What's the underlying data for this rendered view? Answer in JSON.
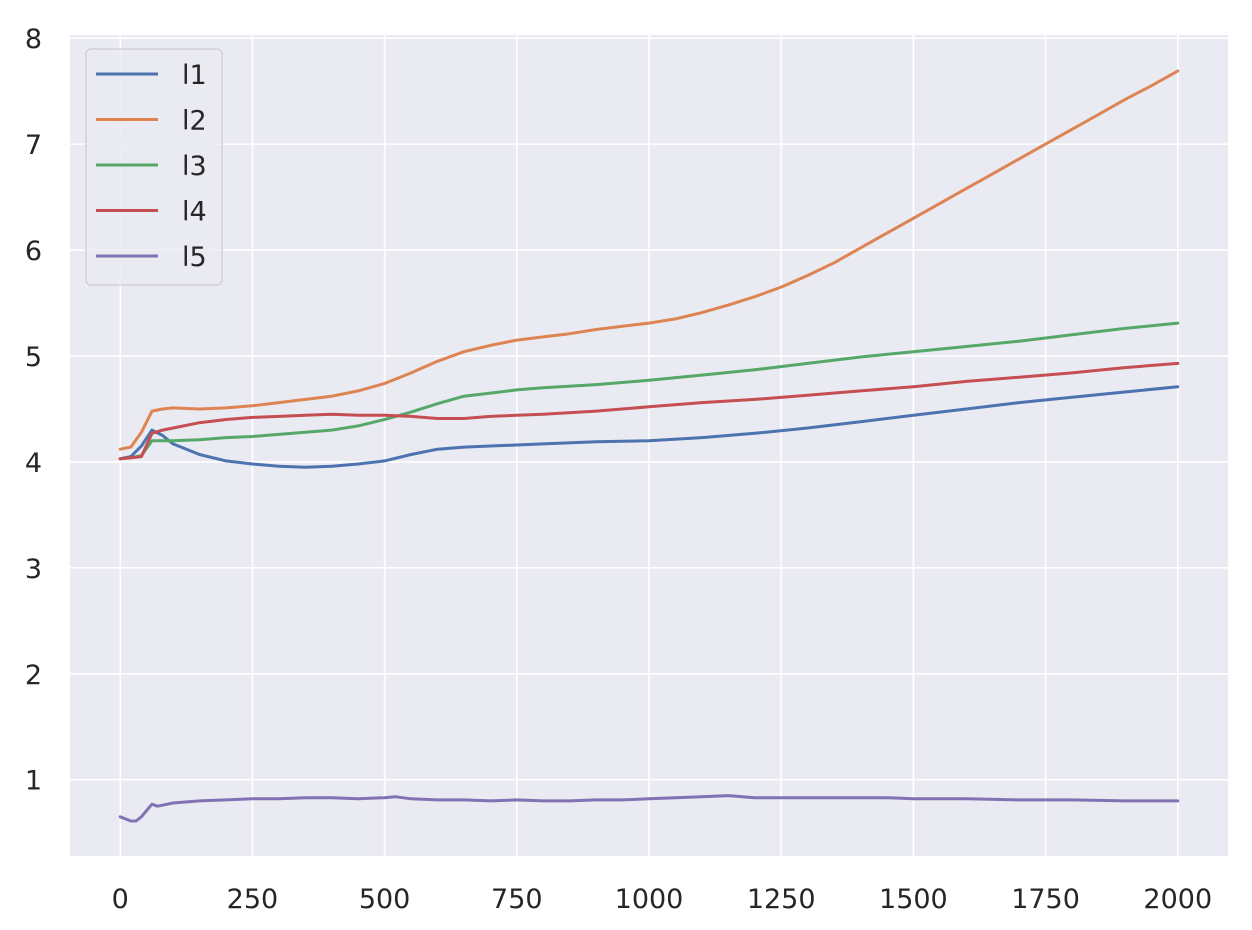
{
  "chart_data": {
    "type": "line",
    "title": "",
    "xlabel": "",
    "ylabel": "",
    "xlim": [
      -95,
      2095
    ],
    "ylim": [
      0.28,
      8.03
    ],
    "grid": true,
    "legend_position": "top-left",
    "x_ticks": [
      0,
      250,
      500,
      750,
      1000,
      1250,
      1500,
      1750,
      2000
    ],
    "x_tick_labels": [
      "0",
      "250",
      "500",
      "750",
      "1000",
      "1250",
      "1500",
      "1750",
      "2000"
    ],
    "y_ticks": [
      1,
      2,
      3,
      4,
      5,
      6,
      7,
      8
    ],
    "y_tick_labels": [
      "1",
      "2",
      "3",
      "4",
      "5",
      "6",
      "7",
      "8"
    ],
    "series": [
      {
        "name": "l1",
        "color": "#4c72b0",
        "x": [
          0,
          20,
          40,
          60,
          80,
          100,
          150,
          200,
          250,
          300,
          350,
          400,
          450,
          500,
          550,
          600,
          650,
          700,
          750,
          800,
          900,
          1000,
          1100,
          1200,
          1300,
          1400,
          1500,
          1600,
          1700,
          1800,
          1900,
          2000
        ],
        "y": [
          4.03,
          4.05,
          4.15,
          4.3,
          4.25,
          4.17,
          4.07,
          4.01,
          3.98,
          3.96,
          3.95,
          3.96,
          3.98,
          4.01,
          4.07,
          4.12,
          4.14,
          4.15,
          4.16,
          4.17,
          4.19,
          4.2,
          4.23,
          4.27,
          4.32,
          4.38,
          4.44,
          4.5,
          4.56,
          4.61,
          4.66,
          4.71
        ]
      },
      {
        "name": "l2",
        "color": "#dd8452",
        "x": [
          0,
          20,
          40,
          60,
          80,
          100,
          150,
          200,
          250,
          300,
          350,
          400,
          450,
          500,
          550,
          600,
          650,
          700,
          750,
          800,
          850,
          900,
          950,
          1000,
          1050,
          1100,
          1150,
          1200,
          1250,
          1300,
          1350,
          1400,
          1450,
          1500,
          1550,
          1600,
          1650,
          1700,
          1750,
          1800,
          1850,
          1900,
          1950,
          2000
        ],
        "y": [
          4.12,
          4.14,
          4.28,
          4.48,
          4.5,
          4.51,
          4.5,
          4.51,
          4.53,
          4.56,
          4.59,
          4.62,
          4.67,
          4.74,
          4.84,
          4.95,
          5.04,
          5.1,
          5.15,
          5.18,
          5.21,
          5.25,
          5.28,
          5.31,
          5.35,
          5.41,
          5.48,
          5.56,
          5.65,
          5.76,
          5.88,
          6.02,
          6.16,
          6.3,
          6.44,
          6.58,
          6.72,
          6.86,
          7.0,
          7.14,
          7.28,
          7.42,
          7.55,
          7.69
        ]
      },
      {
        "name": "l3",
        "color": "#55a868",
        "x": [
          0,
          20,
          40,
          60,
          80,
          100,
          150,
          200,
          250,
          300,
          350,
          400,
          450,
          500,
          550,
          600,
          650,
          700,
          750,
          800,
          900,
          1000,
          1100,
          1200,
          1300,
          1400,
          1500,
          1600,
          1700,
          1800,
          1900,
          2000
        ],
        "y": [
          4.03,
          4.04,
          4.06,
          4.2,
          4.2,
          4.2,
          4.21,
          4.23,
          4.24,
          4.26,
          4.28,
          4.3,
          4.34,
          4.4,
          4.47,
          4.55,
          4.62,
          4.65,
          4.68,
          4.7,
          4.73,
          4.77,
          4.82,
          4.87,
          4.93,
          4.99,
          5.04,
          5.09,
          5.14,
          5.2,
          5.26,
          5.31
        ]
      },
      {
        "name": "l4",
        "color": "#c44e52",
        "x": [
          0,
          20,
          40,
          60,
          80,
          100,
          150,
          200,
          250,
          300,
          350,
          400,
          450,
          500,
          550,
          600,
          650,
          700,
          750,
          800,
          900,
          1000,
          1100,
          1200,
          1300,
          1400,
          1500,
          1600,
          1700,
          1800,
          1900,
          2000
        ],
        "y": [
          4.03,
          4.04,
          4.05,
          4.27,
          4.3,
          4.32,
          4.37,
          4.4,
          4.42,
          4.43,
          4.44,
          4.45,
          4.44,
          4.44,
          4.43,
          4.41,
          4.41,
          4.43,
          4.44,
          4.45,
          4.48,
          4.52,
          4.56,
          4.59,
          4.63,
          4.67,
          4.71,
          4.76,
          4.8,
          4.84,
          4.89,
          4.93
        ]
      },
      {
        "name": "l5",
        "color": "#8172b3",
        "x": [
          0,
          10,
          20,
          30,
          40,
          50,
          60,
          70,
          80,
          90,
          100,
          150,
          200,
          250,
          300,
          350,
          400,
          450,
          500,
          520,
          550,
          600,
          650,
          700,
          750,
          800,
          850,
          900,
          950,
          1000,
          1050,
          1100,
          1150,
          1200,
          1250,
          1300,
          1350,
          1400,
          1450,
          1500,
          1600,
          1700,
          1800,
          1900,
          2000
        ],
        "y": [
          0.65,
          0.63,
          0.61,
          0.61,
          0.65,
          0.71,
          0.77,
          0.75,
          0.76,
          0.77,
          0.78,
          0.8,
          0.81,
          0.82,
          0.82,
          0.83,
          0.83,
          0.82,
          0.83,
          0.84,
          0.82,
          0.81,
          0.81,
          0.8,
          0.81,
          0.8,
          0.8,
          0.81,
          0.81,
          0.82,
          0.83,
          0.84,
          0.85,
          0.83,
          0.83,
          0.83,
          0.83,
          0.83,
          0.83,
          0.82,
          0.82,
          0.81,
          0.81,
          0.8,
          0.8
        ]
      }
    ]
  }
}
